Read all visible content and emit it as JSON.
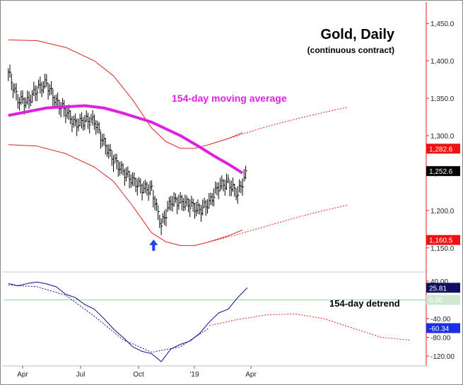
{
  "chart_data": [
    {
      "type": "line",
      "title": "Gold, Daily",
      "subtitle": "(continuous contract)",
      "ylim": [
        1130,
        1470
      ],
      "y_ticks": [
        {
          "value": 1450,
          "label": "1,450.0"
        },
        {
          "value": 1400,
          "label": "1,400.0"
        },
        {
          "value": 1350,
          "label": "1,350.0"
        },
        {
          "value": 1300,
          "label": "1,300.0"
        },
        {
          "value": 1250,
          "label": "1,250.0"
        },
        {
          "value": 1200,
          "label": "1,200.0"
        },
        {
          "value": 1150,
          "label": "1,150.0"
        }
      ],
      "x_ticks": [
        "Apr",
        "Jul",
        "Oct",
        "'19",
        "Apr"
      ],
      "annotation": "154-day moving average",
      "price_badges": [
        {
          "value": 1282.6,
          "label": "1,282.6",
          "color": "#ee1111",
          "text_color": "#ffffff"
        },
        {
          "value": 1252.6,
          "label": "1,252.6",
          "color": "#000000",
          "text_color": "#ffffff"
        },
        {
          "value": 1160.5,
          "label": "1,160.5",
          "color": "#ee1111",
          "text_color": "#ffffff"
        }
      ],
      "series": [
        {
          "name": "154-day moving average",
          "color": "#e020e0",
          "x": [
            0,
            40,
            80,
            100,
            120,
            150,
            180,
            200,
            215,
            230,
            245
          ],
          "values": [
            1327,
            1337,
            1340,
            1337,
            1330,
            1318,
            1300,
            1285,
            1273,
            1262,
            1250
          ]
        },
        {
          "name": "upper band",
          "color": "#dd2222",
          "x": [
            0,
            30,
            60,
            90,
            110,
            130,
            150,
            165,
            180,
            195,
            210,
            230,
            245
          ],
          "values": [
            1428,
            1427,
            1418,
            1400,
            1380,
            1348,
            1310,
            1292,
            1283,
            1283,
            1288,
            1296,
            1304
          ]
        },
        {
          "name": "upper band projection",
          "color": "#dd2222",
          "dashed": true,
          "x": [
            210,
            240,
            270,
            300,
            330,
            355
          ],
          "values": [
            1288,
            1300,
            1312,
            1322,
            1331,
            1338
          ]
        },
        {
          "name": "lower band",
          "color": "#dd2222",
          "x": [
            0,
            30,
            60,
            90,
            110,
            130,
            150,
            165,
            180,
            195,
            210,
            230,
            245
          ],
          "values": [
            1288,
            1286,
            1276,
            1258,
            1239,
            1206,
            1170,
            1158,
            1153,
            1153,
            1158,
            1166,
            1174
          ]
        },
        {
          "name": "lower band projection",
          "color": "#dd2222",
          "dashed": true,
          "x": [
            210,
            240,
            270,
            300,
            330,
            355
          ],
          "values": [
            1158,
            1168,
            1179,
            1190,
            1200,
            1207
          ]
        }
      ],
      "price_bars": {
        "color": "#000000",
        "x": [
          0,
          10,
          20,
          30,
          40,
          50,
          60,
          70,
          80,
          90,
          100,
          110,
          120,
          130,
          140,
          150,
          160,
          170,
          180,
          190,
          200,
          210,
          220,
          230,
          240,
          250
        ],
        "values": [
          1385,
          1348,
          1345,
          1362,
          1370,
          1345,
          1333,
          1315,
          1320,
          1320,
          1290,
          1268,
          1252,
          1240,
          1230,
          1228,
          1180,
          1212,
          1212,
          1208,
          1200,
          1210,
          1232,
          1237,
          1222,
          1252.6
        ]
      },
      "marker": {
        "symbol": "up-arrow",
        "x": 152,
        "value": 1148,
        "color": "#2244ee"
      }
    },
    {
      "type": "line",
      "title": "154-day detrend",
      "ylim": [
        -135,
        55
      ],
      "y_ticks": [
        {
          "value": 40,
          "label": "40.00"
        },
        {
          "value": 0,
          "label": "0.00"
        },
        {
          "value": -40,
          "label": "-40.00"
        },
        {
          "value": -80,
          "label": "-80.00"
        },
        {
          "value": -120,
          "label": "-120.00"
        }
      ],
      "value_badges": [
        {
          "value": 25.81,
          "label": "25.81",
          "color": "#101060",
          "text_color": "#ffffff"
        },
        {
          "value": 0.0,
          "label": "0.00",
          "color": "#cfe8cf",
          "text_color": "#ffffff"
        },
        {
          "value": -60.34,
          "label": "-60.34",
          "color": "#1c2ee8",
          "text_color": "#ffffff"
        }
      ],
      "series": [
        {
          "name": "detrend",
          "color": "#0a0a8c",
          "x": [
            0,
            10,
            20,
            30,
            40,
            50,
            60,
            70,
            80,
            90,
            100,
            110,
            120,
            130,
            140,
            150,
            160,
            170,
            180,
            190,
            200,
            210,
            220,
            230,
            240,
            250
          ],
          "values": [
            35,
            30,
            35,
            38,
            34,
            28,
            12,
            5,
            -10,
            -20,
            -40,
            -62,
            -80,
            -100,
            -110,
            -115,
            -132,
            -105,
            -95,
            -88,
            -72,
            -48,
            -28,
            -20,
            5,
            25.81
          ]
        },
        {
          "name": "detrend smooth",
          "color": "#0a0a8c",
          "dashed": true,
          "x": [
            0,
            30,
            60,
            90,
            120,
            150,
            180,
            210
          ],
          "values": [
            32,
            28,
            10,
            -35,
            -85,
            -112,
            -100,
            -60
          ]
        },
        {
          "name": "detrend projection",
          "color": "#dd2222",
          "dashed": true,
          "x": [
            210,
            240,
            270,
            300,
            330,
            360,
            390,
            420
          ],
          "values": [
            -55,
            -42,
            -32,
            -30,
            -40,
            -60,
            -80,
            -86
          ]
        }
      ],
      "zero_line": {
        "value": 0,
        "color": "#9fd09f"
      }
    }
  ],
  "shared_x": {
    "xlim": [
      -5,
      435
    ],
    "x_tick_positions": [
      32,
      114,
      196,
      275,
      355
    ]
  }
}
